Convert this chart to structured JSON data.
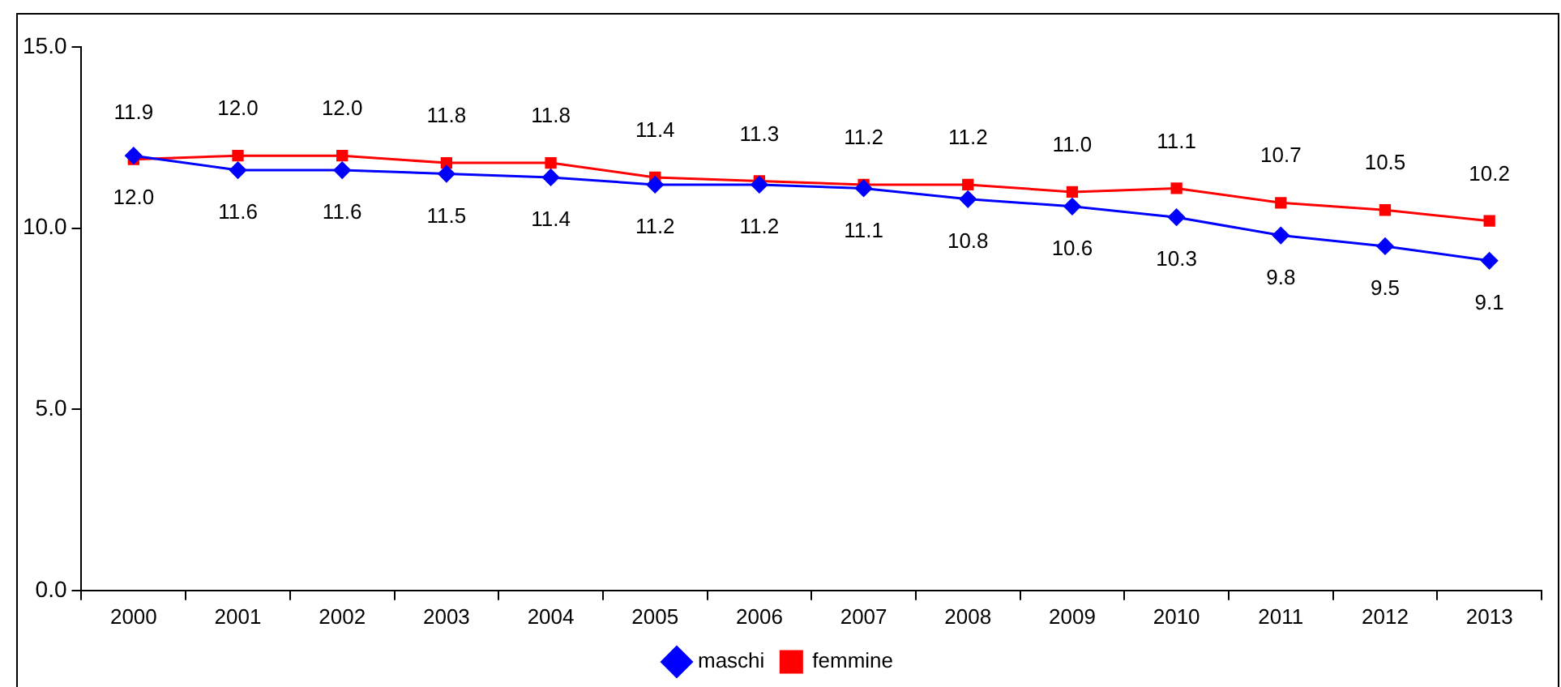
{
  "chart_data": {
    "type": "line",
    "categories": [
      "2000",
      "2001",
      "2002",
      "2003",
      "2004",
      "2005",
      "2006",
      "2007",
      "2008",
      "2009",
      "2010",
      "2011",
      "2012",
      "2013"
    ],
    "series": [
      {
        "name": "maschi",
        "color": "#0000ff",
        "marker": "diamond",
        "values": [
          12.0,
          11.6,
          11.6,
          11.5,
          11.4,
          11.2,
          11.2,
          11.1,
          10.8,
          10.6,
          10.3,
          9.8,
          9.5,
          9.1
        ],
        "value_labels": [
          "12.0",
          "11.6",
          "11.6",
          "11.5",
          "11.4",
          "11.2",
          "11.2",
          "11.1",
          "10.8",
          "10.6",
          "10.3",
          "9.8",
          "9.5",
          "9.1"
        ]
      },
      {
        "name": "femmine",
        "color": "#ff0000",
        "marker": "square",
        "values": [
          11.9,
          12.0,
          12.0,
          11.8,
          11.8,
          11.4,
          11.3,
          11.2,
          11.2,
          11.0,
          11.1,
          10.7,
          10.5,
          10.2
        ],
        "value_labels": [
          "11.9",
          "12.0",
          "12.0",
          "11.8",
          "11.8",
          "11.4",
          "11.3",
          "11.2",
          "11.2",
          "11.0",
          "11.1",
          "10.7",
          "10.5",
          "10.2"
        ]
      }
    ],
    "ylim": [
      0,
      15
    ],
    "yticks": [
      {
        "value": 0,
        "label": "0.0"
      },
      {
        "value": 5,
        "label": "5.0"
      },
      {
        "value": 10,
        "label": "10.0"
      },
      {
        "value": 15,
        "label": "15.0"
      }
    ],
    "grid": false,
    "legend": "bottom",
    "line_style": "solid"
  }
}
